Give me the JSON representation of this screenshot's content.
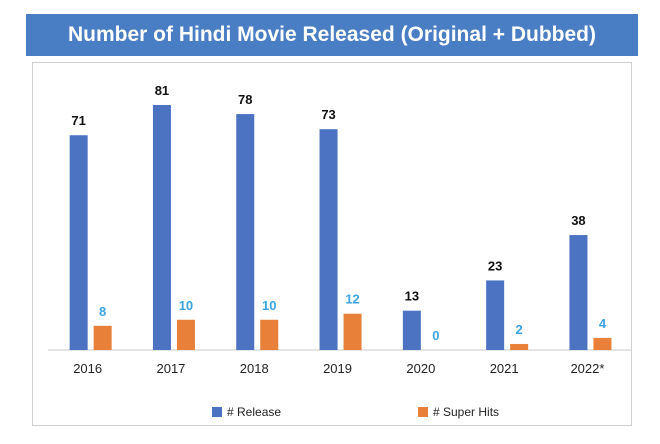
{
  "chart_data": {
    "type": "bar",
    "title": "Number of Hindi Movie Released (Original + Dubbed)",
    "categories": [
      "2016",
      "2017",
      "2018",
      "2019",
      "2020",
      "2021",
      "2022*"
    ],
    "series": [
      {
        "name": "# Release",
        "values": [
          71,
          81,
          78,
          73,
          13,
          23,
          38
        ],
        "color": "#4c72c2"
      },
      {
        "name": "# Super Hits",
        "values": [
          8,
          10,
          10,
          12,
          0,
          2,
          4
        ],
        "color": "#e8803a"
      }
    ],
    "label_colors": {
      "release": "#111111",
      "super_hits": "#3ba3e0"
    },
    "ylim": [
      0,
      81
    ],
    "grid": false,
    "legend_position": "bottom"
  }
}
